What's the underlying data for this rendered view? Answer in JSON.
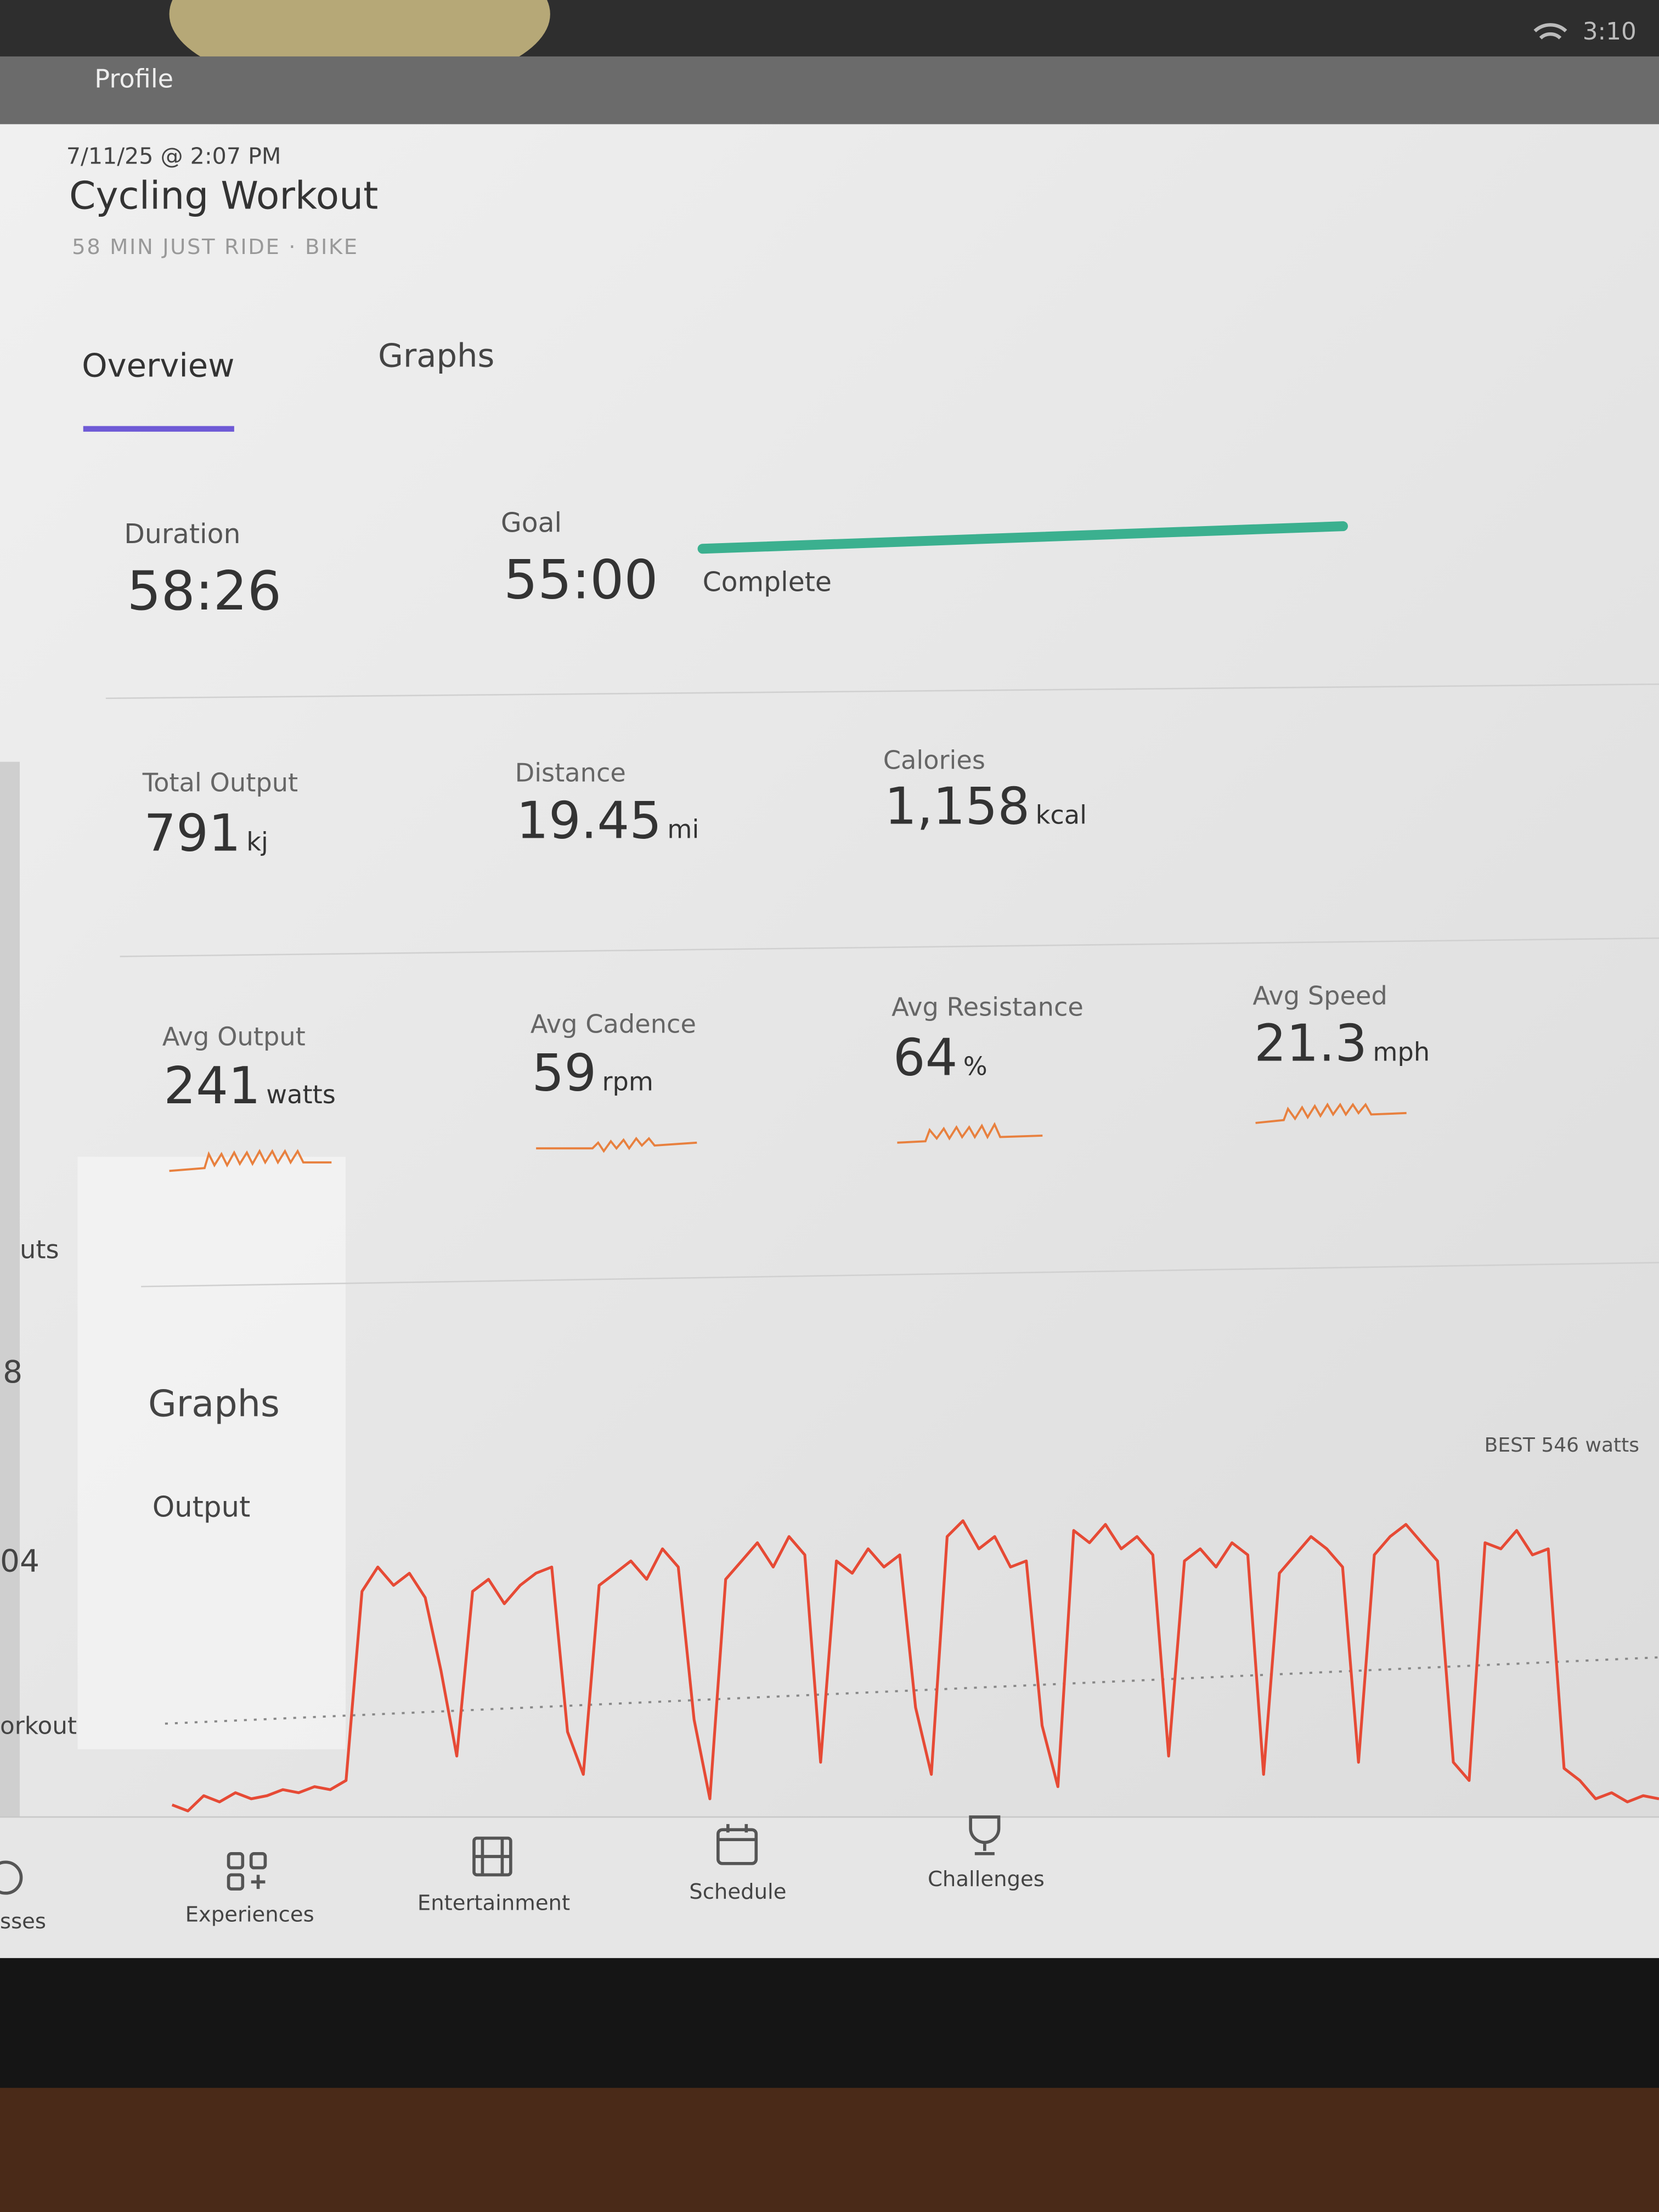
{
  "status": {
    "time": "3:10"
  },
  "header": {
    "back": "Profile",
    "date": "7/11/25 @ 2:07 PM",
    "title": "Cycling Workout",
    "subtitle": "58 MIN JUST RIDE · BIKE"
  },
  "tabs": [
    "Overview",
    "Graphs"
  ],
  "goal": {
    "duration_label": "Duration",
    "duration": "58:26",
    "goal_label": "Goal",
    "goal": "55:00",
    "status": "Complete"
  },
  "metrics": [
    {
      "label": "Total Output",
      "value": 791,
      "unit": "kj"
    },
    {
      "label": "Distance",
      "value": 19.45,
      "unit": "mi"
    },
    {
      "label": "Calories",
      "value": "1,158",
      "unit": "kcal"
    },
    {
      "label": "Avg Output",
      "value": 241,
      "unit": "watts"
    },
    {
      "label": "Avg Cadence",
      "value": 59,
      "unit": "rpm"
    },
    {
      "label": "Avg Resistance",
      "value": 64,
      "unit": "%"
    },
    {
      "label": "Avg Speed",
      "value": 21.3,
      "unit": "mph"
    }
  ],
  "section_title": "Graphs",
  "chart_data": {
    "type": "line",
    "title": "Output",
    "annotation": "BEST 546 watts",
    "color": "#e64a35",
    "values": [
      80,
      70,
      95,
      85,
      100,
      90,
      95,
      105,
      100,
      110,
      105,
      120,
      430,
      470,
      440,
      460,
      420,
      300,
      160,
      430,
      450,
      410,
      440,
      460,
      470,
      200,
      130,
      440,
      460,
      480,
      450,
      500,
      470,
      220,
      90,
      450,
      480,
      510,
      470,
      520,
      490,
      150,
      480,
      460,
      500,
      470,
      490,
      240,
      130,
      520,
      546,
      500,
      520,
      470,
      480,
      210,
      110,
      530,
      510,
      540,
      500,
      520,
      490,
      160,
      480,
      500,
      470,
      510,
      490,
      130,
      460,
      490,
      520,
      500,
      470,
      150,
      490,
      520,
      540,
      510,
      480,
      150,
      120,
      510,
      500,
      530,
      490,
      500,
      140,
      120,
      90,
      100,
      85,
      95,
      90
    ]
  },
  "sidebar": [
    "uts",
    "8",
    "04",
    "orkout",
    "sses"
  ],
  "nav": [
    "Experiences",
    "Entertainment",
    "Schedule",
    "Challenges"
  ]
}
